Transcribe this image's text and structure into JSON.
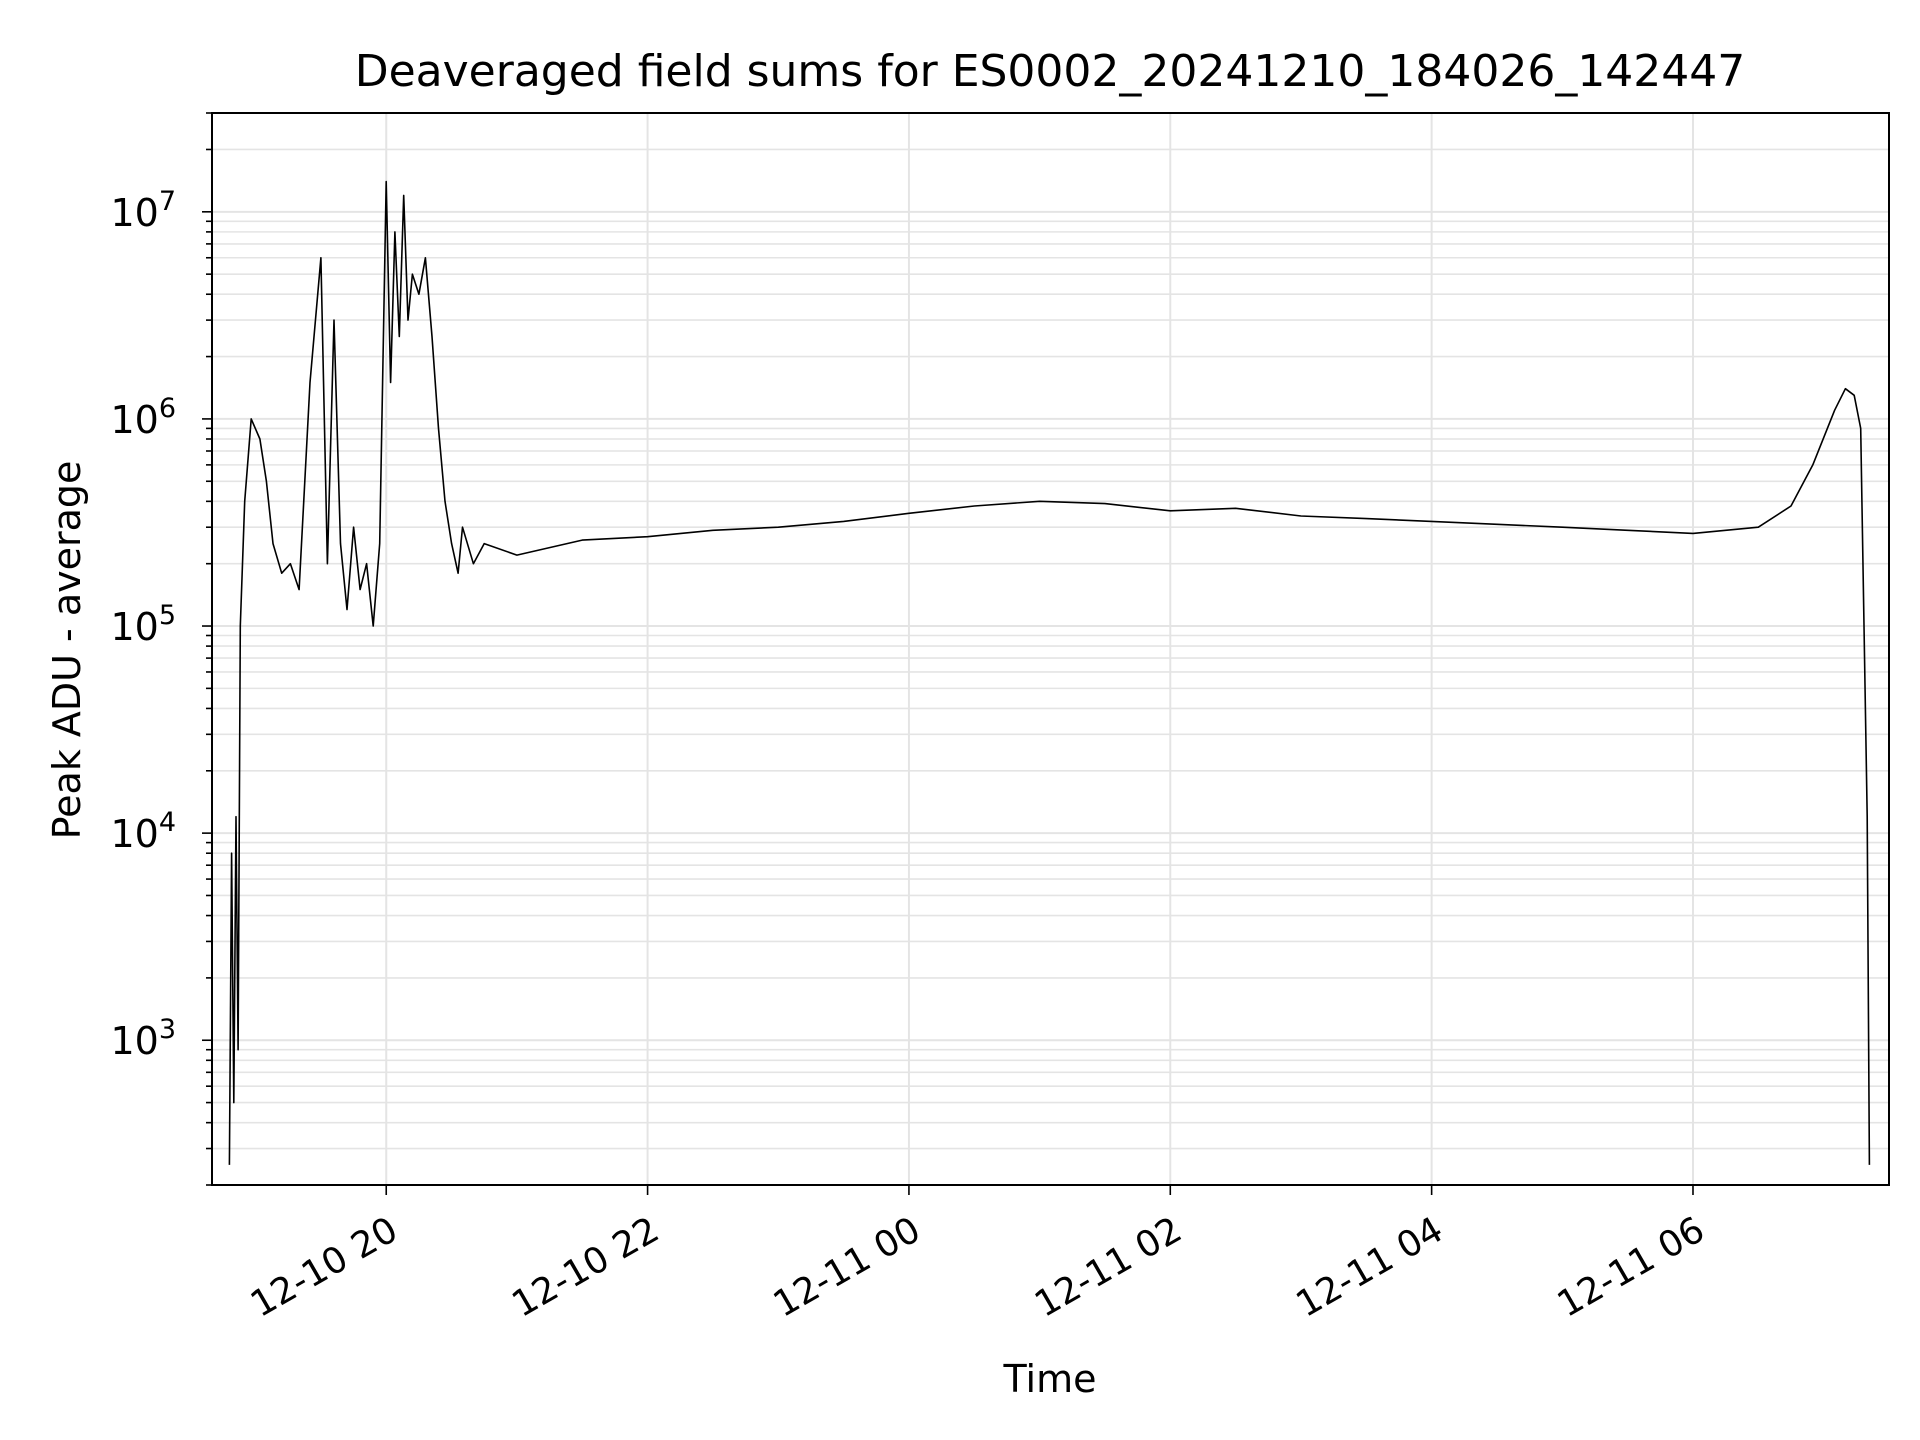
{
  "chart_data": {
    "type": "line",
    "title": "Deaveraged field sums for ES0002_20241210_184026_142447",
    "xlabel": "Time",
    "ylabel": "Peak ADU - average",
    "x_range": [
      "2024-12-10 18:40",
      "2024-12-11 07:30"
    ],
    "ylim": [
      200,
      30000000
    ],
    "yscale": "log",
    "grid": true,
    "line_color": "#000000",
    "x_ticks": [
      {
        "at": "2024-12-10 20:00",
        "label": "12-10 20"
      },
      {
        "at": "2024-12-10 22:00",
        "label": "12-10 22"
      },
      {
        "at": "2024-12-11 00:00",
        "label": "12-11 00"
      },
      {
        "at": "2024-12-11 02:00",
        "label": "12-11 02"
      },
      {
        "at": "2024-12-11 04:00",
        "label": "12-11 04"
      },
      {
        "at": "2024-12-11 06:00",
        "label": "12-11 06"
      }
    ],
    "y_ticks": [
      {
        "value": 1000,
        "base": "10",
        "exp": "3"
      },
      {
        "value": 10000,
        "base": "10",
        "exp": "4"
      },
      {
        "value": 100000,
        "base": "10",
        "exp": "5"
      },
      {
        "value": 1000000,
        "base": "10",
        "exp": "6"
      },
      {
        "value": 10000000,
        "base": "10",
        "exp": "7"
      }
    ],
    "series": [
      {
        "x": [
          "2024-12-10 18:48",
          "2024-12-10 18:49",
          "2024-12-10 18:50",
          "2024-12-10 18:51",
          "2024-12-10 18:52",
          "2024-12-10 18:53",
          "2024-12-10 18:55",
          "2024-12-10 18:58",
          "2024-12-10 19:02",
          "2024-12-10 19:05",
          "2024-12-10 19:08",
          "2024-12-10 19:12",
          "2024-12-10 19:16",
          "2024-12-10 19:20",
          "2024-12-10 19:25",
          "2024-12-10 19:30",
          "2024-12-10 19:33",
          "2024-12-10 19:36",
          "2024-12-10 19:39",
          "2024-12-10 19:42",
          "2024-12-10 19:45",
          "2024-12-10 19:48",
          "2024-12-10 19:51",
          "2024-12-10 19:54",
          "2024-12-10 19:57",
          "2024-12-10 20:00",
          "2024-12-10 20:02",
          "2024-12-10 20:04",
          "2024-12-10 20:06",
          "2024-12-10 20:08",
          "2024-12-10 20:10",
          "2024-12-10 20:12",
          "2024-12-10 20:15",
          "2024-12-10 20:18",
          "2024-12-10 20:21",
          "2024-12-10 20:24",
          "2024-12-10 20:27",
          "2024-12-10 20:30",
          "2024-12-10 20:33",
          "2024-12-10 20:35",
          "2024-12-10 20:40",
          "2024-12-10 20:45",
          "2024-12-10 21:00",
          "2024-12-10 21:30",
          "2024-12-10 22:00",
          "2024-12-10 22:30",
          "2024-12-10 23:00",
          "2024-12-10 23:30",
          "2024-12-11 00:00",
          "2024-12-11 00:30",
          "2024-12-11 01:00",
          "2024-12-11 01:30",
          "2024-12-11 02:00",
          "2024-12-11 02:30",
          "2024-12-11 03:00",
          "2024-12-11 03:30",
          "2024-12-11 04:00",
          "2024-12-11 04:30",
          "2024-12-11 05:00",
          "2024-12-11 05:30",
          "2024-12-11 06:00",
          "2024-12-11 06:30",
          "2024-12-11 06:45",
          "2024-12-11 06:55",
          "2024-12-11 07:05",
          "2024-12-11 07:10",
          "2024-12-11 07:14",
          "2024-12-11 07:17",
          "2024-12-11 07:20",
          "2024-12-11 07:21"
        ],
        "y": [
          250,
          8000,
          500,
          12000,
          900,
          100000,
          400000,
          1000000,
          800000,
          500000,
          250000,
          180000,
          200000,
          150000,
          1500000,
          6000000,
          200000,
          3000000,
          250000,
          120000,
          300000,
          150000,
          200000,
          100000,
          250000,
          14000000,
          1500000,
          8000000,
          2500000,
          12000000,
          3000000,
          5000000,
          4000000,
          6000000,
          2500000,
          900000,
          400000,
          250000,
          180000,
          300000,
          200000,
          250000,
          220000,
          260000,
          270000,
          290000,
          300000,
          320000,
          350000,
          380000,
          400000,
          390000,
          360000,
          370000,
          340000,
          330000,
          320000,
          310000,
          300000,
          290000,
          280000,
          300000,
          380000,
          600000,
          1100000,
          1400000,
          1300000,
          900000,
          12000,
          250
        ]
      }
    ]
  }
}
